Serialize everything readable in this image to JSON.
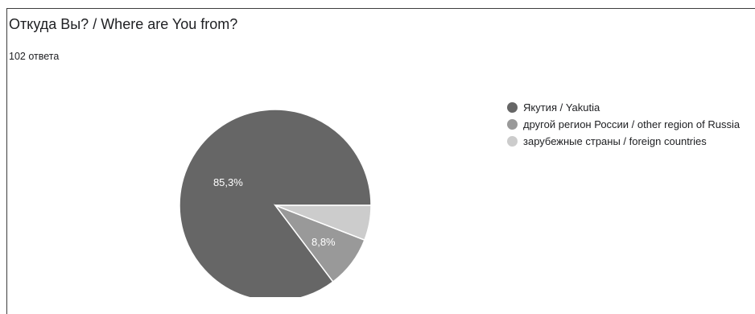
{
  "question": {
    "title": "Откуда Вы? / Where are You from?",
    "response_count": "102 ответа"
  },
  "chart_data": {
    "type": "pie",
    "categories": [
      "Якутия / Yakutia",
      "другой регион России / other region of Russia",
      "зарубежные страны / foreign countries"
    ],
    "values": [
      85.3,
      8.8,
      5.9
    ],
    "slice_labels": [
      "85,3%",
      "8,8%",
      ""
    ],
    "colors": [
      "#666666",
      "#999999",
      "#cccccc"
    ],
    "legend_placement": "right"
  }
}
